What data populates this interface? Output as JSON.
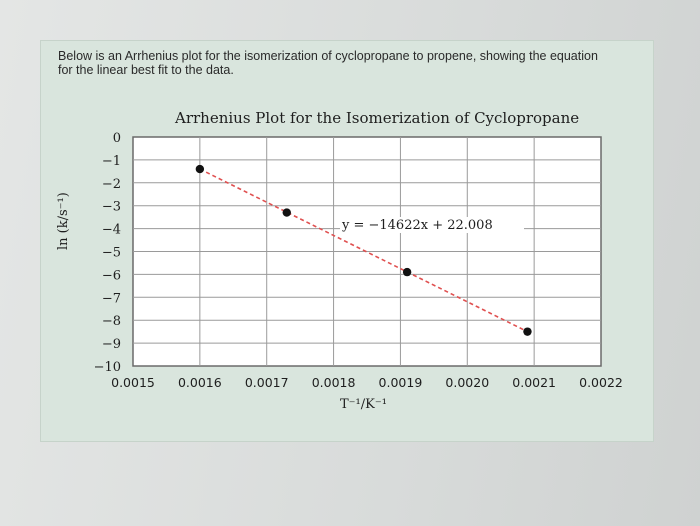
{
  "question": {
    "line1": "Below is an Arrhenius plot for the isomerization of cyclopropane to propene, showing the equation",
    "line2": "for the linear best fit to the data."
  },
  "chart_data": {
    "type": "scatter",
    "title": "Arrhenius Plot for the Isomerization of Cyclopropane",
    "xlabel": "T⁻¹/K⁻¹",
    "ylabel": "ln (k/s⁻¹)",
    "xlim": [
      0.0015,
      0.0022
    ],
    "ylim": [
      -10,
      0
    ],
    "x_ticks": [
      "0.0015",
      "0.0016",
      "0.0017",
      "0.0018",
      "0.0019",
      "0.0020",
      "0.0021",
      "0.0022"
    ],
    "y_ticks": [
      "0",
      "−1",
      "−2",
      "−3",
      "−4",
      "−5",
      "−6",
      "−7",
      "−8",
      "−9",
      "−10"
    ],
    "grid": true,
    "series": [
      {
        "x": [
          0.0016,
          0.00173,
          0.00191,
          0.00209
        ],
        "y": [
          -1.4,
          -3.3,
          -5.9,
          -8.5
        ]
      }
    ],
    "fit_line": {
      "slope": -14622,
      "intercept": 22.008,
      "x_range": [
        0.0016,
        0.00209
      ],
      "style": "dashed",
      "color": "#e05050"
    },
    "annotation": "y = −14622x + 22.008"
  },
  "colors": {
    "panel": "#d9e5dd",
    "grid": "#9a9a9a",
    "fit": "#e05050",
    "point": "#111111"
  }
}
